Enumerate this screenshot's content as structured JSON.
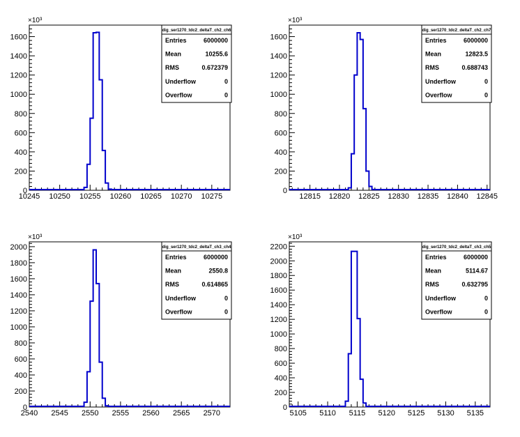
{
  "chart_data": [
    {
      "type": "histogram",
      "name": "dig_ser1270_tdc2_deltaT_ch2_ch6",
      "exponent_label": "×10³",
      "xlim": [
        10245,
        10278
      ],
      "ylim": [
        0,
        1720
      ],
      "x_ticks": [
        10245,
        10250,
        10255,
        10260,
        10265,
        10270,
        10275
      ],
      "y_ticks": [
        0,
        200,
        400,
        600,
        800,
        1000,
        1200,
        1400,
        1600
      ],
      "bin_width": 0.5,
      "bins": [
        [
          10254,
          30
        ],
        [
          10254.5,
          270
        ],
        [
          10255,
          750
        ],
        [
          10255.5,
          1640
        ],
        [
          10256,
          1645
        ],
        [
          10256.5,
          1150
        ],
        [
          10257,
          415
        ],
        [
          10257.5,
          75
        ],
        [
          10258,
          12
        ]
      ],
      "stats": {
        "title": "dig_ser1270_tdc2_deltaT_ch2_ch6",
        "rows": [
          {
            "label": "Entries",
            "value": "6000000"
          },
          {
            "label": "Mean",
            "value": "10255.6"
          },
          {
            "label": "RMS",
            "value": "0.672379"
          },
          {
            "label": "Underflow",
            "value": "0"
          },
          {
            "label": "Overflow",
            "value": "0"
          }
        ]
      }
    },
    {
      "type": "histogram",
      "name": "dig_ser1270_tdc2_deltaT_ch2_ch7",
      "exponent_label": "×10³",
      "xlim": [
        12811.5,
        12845.5
      ],
      "ylim": [
        0,
        1720
      ],
      "x_ticks": [
        12815,
        12820,
        12825,
        12830,
        12835,
        12840,
        12845
      ],
      "y_ticks": [
        0,
        200,
        400,
        600,
        800,
        1000,
        1200,
        1400,
        1600
      ],
      "bin_width": 0.5,
      "bins": [
        [
          12821.5,
          25
        ],
        [
          12822,
          380
        ],
        [
          12822.5,
          1200
        ],
        [
          12823,
          1640
        ],
        [
          12823.5,
          1570
        ],
        [
          12824,
          850
        ],
        [
          12824.5,
          200
        ],
        [
          12825,
          40
        ],
        [
          12825.5,
          8
        ]
      ],
      "stats": {
        "title": "dig_ser1270_tdc2_deltaT_ch2_ch7",
        "rows": [
          {
            "label": "Entries",
            "value": "6000000"
          },
          {
            "label": "Mean",
            "value": "12823.5"
          },
          {
            "label": "RMS",
            "value": "0.688743"
          },
          {
            "label": "Underflow",
            "value": "0"
          },
          {
            "label": "Overflow",
            "value": "0"
          }
        ]
      }
    },
    {
      "type": "histogram",
      "name": "dig_ser1270_tdc2_deltaT_ch3_ch4",
      "exponent_label": "×10³",
      "xlim": [
        2540,
        2573
      ],
      "ylim": [
        0,
        2060
      ],
      "x_ticks": [
        2540,
        2545,
        2550,
        2555,
        2560,
        2565,
        2570
      ],
      "y_ticks": [
        0,
        200,
        400,
        600,
        800,
        1000,
        1200,
        1400,
        1600,
        1800,
        2000
      ],
      "bin_width": 0.5,
      "bins": [
        [
          2549,
          60
        ],
        [
          2549.5,
          440
        ],
        [
          2550,
          1320
        ],
        [
          2550.5,
          1960
        ],
        [
          2551,
          1540
        ],
        [
          2551.5,
          560
        ],
        [
          2552,
          110
        ],
        [
          2552.5,
          15
        ]
      ],
      "stats": {
        "title": "dig_ser1270_tdc2_deltaT_ch3_ch4",
        "rows": [
          {
            "label": "Entries",
            "value": "6000000"
          },
          {
            "label": "Mean",
            "value": "2550.8"
          },
          {
            "label": "RMS",
            "value": "0.614865"
          },
          {
            "label": "Underflow",
            "value": "0"
          },
          {
            "label": "Overflow",
            "value": "0"
          }
        ]
      }
    },
    {
      "type": "histogram",
      "name": "dig_ser1270_tdc2_deltaT_ch3_ch5",
      "exponent_label": "×10³",
      "xlim": [
        5103.5,
        5137.5
      ],
      "ylim": [
        0,
        2260
      ],
      "x_ticks": [
        5105,
        5110,
        5115,
        5120,
        5125,
        5130,
        5135
      ],
      "y_ticks": [
        0,
        200,
        400,
        600,
        800,
        1000,
        1200,
        1400,
        1600,
        1800,
        2000,
        2200
      ],
      "bin_width": 0.5,
      "bins": [
        [
          5113,
          80
        ],
        [
          5113.5,
          730
        ],
        [
          5114,
          2130
        ],
        [
          5114.5,
          2130
        ],
        [
          5115,
          1210
        ],
        [
          5115.5,
          380
        ],
        [
          5116,
          55
        ],
        [
          5116.5,
          8
        ]
      ],
      "stats": {
        "title": "dig_ser1270_tdc2_deltaT_ch3_ch5",
        "rows": [
          {
            "label": "Entries",
            "value": "6000000"
          },
          {
            "label": "Mean",
            "value": "5114.67"
          },
          {
            "label": "RMS",
            "value": "0.632795"
          },
          {
            "label": "Underflow",
            "value": "0"
          },
          {
            "label": "Overflow",
            "value": "0"
          }
        ]
      }
    }
  ],
  "colors": {
    "histogram_line": "#0000cc",
    "axis": "#000000",
    "background": "#ffffff"
  }
}
